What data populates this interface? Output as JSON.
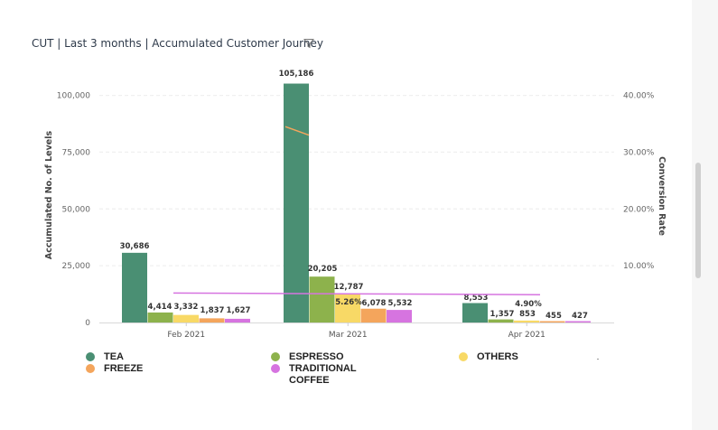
{
  "header": {
    "title": "CUT | Last 3 months | Accumulated Customer Journey",
    "filter_icon": "filter-icon"
  },
  "colors": {
    "TEA": "#4a8f73",
    "ESPRESSO": "#8db24c",
    "OTHERS": "#f8d966",
    "FREEZE": "#f4a55c",
    "TRADITIONAL COFFEE": "#d674e0",
    "rate_line_mar": "#f4a55c",
    "rate_line_other": "#d674e0"
  },
  "chart_data": {
    "type": "bar",
    "categories": [
      "Feb 2021",
      "Mar 2021",
      "Apr 2021"
    ],
    "series": [
      {
        "name": "TEA",
        "values": [
          30686,
          105186,
          8553
        ],
        "labels": [
          "30,686",
          "105,186",
          "8,553"
        ]
      },
      {
        "name": "ESPRESSO",
        "values": [
          4414,
          20205,
          1357
        ],
        "labels": [
          "4,414",
          "20,205",
          "1,357"
        ]
      },
      {
        "name": "OTHERS",
        "values": [
          3332,
          12787,
          853
        ],
        "labels": [
          "3,332",
          "12,787",
          "853"
        ]
      },
      {
        "name": "FREEZE",
        "values": [
          1837,
          6078,
          455
        ],
        "labels": [
          "1,837",
          "6,078",
          "455"
        ]
      },
      {
        "name": "TRADITIONAL COFFEE",
        "values": [
          1627,
          5532,
          427
        ],
        "labels": [
          "1,627",
          "5,532",
          "427"
        ]
      }
    ],
    "rate_annotations": [
      "5.26%",
      "4.90%"
    ],
    "ylabel": "Accumulated No. of Levels",
    "y2label": "Conversion Rate",
    "ylim": [
      0,
      105000
    ],
    "yticks": [
      "0",
      "25,000",
      "50,000",
      "75,000",
      "100,000"
    ],
    "y2lim": [
      0,
      0.42
    ],
    "y2ticks": [
      "10.00%",
      "20.00%",
      "30.00%",
      "40.00%"
    ],
    "conversion_lines": [
      {
        "name": "TEA",
        "points": [
          [
            "Mar 2021",
            0.345
          ],
          [
            "Mar 2021",
            0.33
          ]
        ]
      },
      {
        "name": "TRADITIONAL COFFEE",
        "points": [
          [
            "Feb 2021",
            0.052
          ],
          [
            "Apr 2021",
            0.049
          ]
        ]
      }
    ],
    "grid": true,
    "legend_position": "bottom"
  },
  "legend": {
    "items": [
      {
        "label": "TEA"
      },
      {
        "label": "ESPRESSO"
      },
      {
        "label": "OTHERS"
      },
      {
        "label": "FREEZE"
      },
      {
        "label": "TRADITIONAL COFFEE"
      }
    ]
  }
}
